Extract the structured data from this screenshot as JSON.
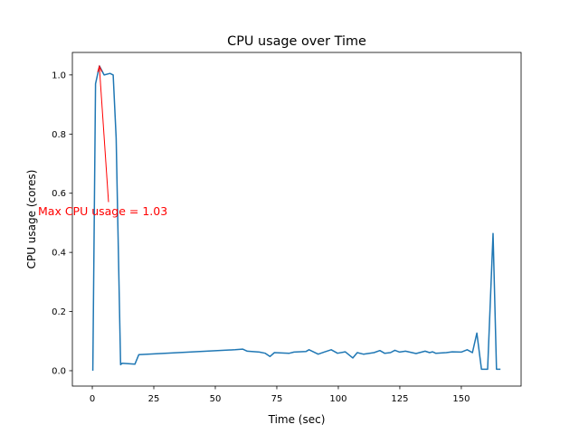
{
  "chart_data": {
    "type": "line",
    "title": "CPU usage over Time",
    "xlabel": "Time (sec)",
    "ylabel": "CPU usage (cores)",
    "xlim": [
      -8.1,
      174.3
    ],
    "ylim": [
      -0.052,
      1.076
    ],
    "xticks": [
      0,
      25,
      50,
      75,
      100,
      125,
      150
    ],
    "xtick_labels": [
      "0",
      "25",
      "50",
      "75",
      "100",
      "125",
      "150"
    ],
    "yticks": [
      0.0,
      0.2,
      0.4,
      0.6,
      0.8,
      1.0
    ],
    "ytick_labels": [
      "0.0",
      "0.2",
      "0.4",
      "0.6",
      "0.8",
      "1.0"
    ],
    "grid": false,
    "series": [
      {
        "name": "CPU usage",
        "color": "#1f77b4",
        "x": [
          0.2,
          1.3,
          2.9,
          4.8,
          7.2,
          8.5,
          9.7,
          11.5,
          12.1,
          17.3,
          18.9,
          58.1,
          61.1,
          63,
          67.9,
          70.3,
          72.2,
          74,
          80.1,
          82,
          86.9,
          88.1,
          91.8,
          94.2,
          97.1,
          99.7,
          102.8,
          105.9,
          107.7,
          110.2,
          114.5,
          116.9,
          118.8,
          121.2,
          123,
          124.9,
          127.3,
          131.6,
          135.3,
          137.1,
          138.3,
          139.6,
          143.9,
          146.3,
          150,
          152.4,
          154.5,
          156.3,
          158.2,
          160.7,
          162.9,
          164.3,
          165.9
        ],
        "y": [
          0,
          0.97,
          1.03,
          1.0,
          1.005,
          1.0,
          0.786,
          0.02,
          0.025,
          0.022,
          0.054,
          0.071,
          0.073,
          0.066,
          0.063,
          0.059,
          0.048,
          0.061,
          0.059,
          0.063,
          0.065,
          0.071,
          0.056,
          0.063,
          0.071,
          0.059,
          0.064,
          0.043,
          0.061,
          0.056,
          0.061,
          0.068,
          0.059,
          0.061,
          0.069,
          0.063,
          0.066,
          0.058,
          0.066,
          0.061,
          0.064,
          0.059,
          0.061,
          0.064,
          0.063,
          0.071,
          0.061,
          0.127,
          0.005,
          0.005,
          0.464,
          0.005,
          0.005
        ]
      }
    ],
    "annotation": {
      "text": "Max CPU usage = 1.03",
      "color": "#ff0000",
      "xy": [
        2.9,
        1.03
      ],
      "xytext": [
        6.6,
        0.57
      ]
    }
  }
}
